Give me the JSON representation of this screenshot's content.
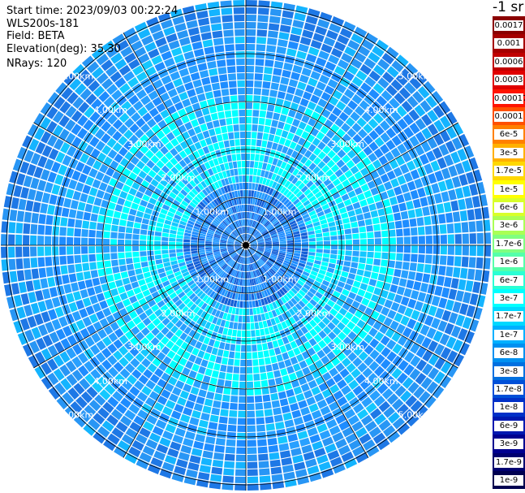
{
  "header": {
    "start_time": "Start time: 2023/09/03 00:22:24",
    "instrument": "WLS200s-181",
    "field": "Field: BETA",
    "elevation": "Elevation(deg): 35.30",
    "nrays": "NRays: 120"
  },
  "plot": {
    "ring_labels": [
      "1.00km",
      "2.00km",
      "3.00km",
      "4.00km",
      "5.00km"
    ],
    "ring_label_color": "#ffffff",
    "grid_color": "#000000"
  },
  "colorbar": {
    "unit": "-1 sr",
    "levels": [
      {
        "label": "0.0017",
        "color": "#8b0000"
      },
      {
        "label": "0.001",
        "color": "#a50000"
      },
      {
        "label": "0.0006",
        "color": "#c00000"
      },
      {
        "label": "0.0003",
        "color": "#e00000"
      },
      {
        "label": "0.00017",
        "color": "#ff1400"
      },
      {
        "label": "0.0001",
        "color": "#ff5000"
      },
      {
        "label": "6e-5",
        "color": "#ff8000"
      },
      {
        "label": "3e-5",
        "color": "#ffb000"
      },
      {
        "label": "1.7e-5",
        "color": "#ffd800"
      },
      {
        "label": "1e-5",
        "color": "#ffff00"
      },
      {
        "label": "6e-6",
        "color": "#d8ff2a"
      },
      {
        "label": "3e-6",
        "color": "#aaff55"
      },
      {
        "label": "1.7e-6",
        "color": "#80ff80"
      },
      {
        "label": "1e-6",
        "color": "#55ffaa"
      },
      {
        "label": "6e-7",
        "color": "#2affd4"
      },
      {
        "label": "3e-7",
        "color": "#00ffff"
      },
      {
        "label": "1.7e-7",
        "color": "#00d8ff"
      },
      {
        "label": "1e-7",
        "color": "#00b0ff"
      },
      {
        "label": "6e-8",
        "color": "#0090f0"
      },
      {
        "label": "3e-8",
        "color": "#0070e0"
      },
      {
        "label": "1.7e-8",
        "color": "#0050d8"
      },
      {
        "label": "1e-8",
        "color": "#0030c8"
      },
      {
        "label": "6e-9",
        "color": "#0018b0"
      },
      {
        "label": "3e-9",
        "color": "#000090"
      },
      {
        "label": "1.7e-9",
        "color": "#000070"
      },
      {
        "label": "1e-9",
        "color": "#000050"
      }
    ]
  }
}
